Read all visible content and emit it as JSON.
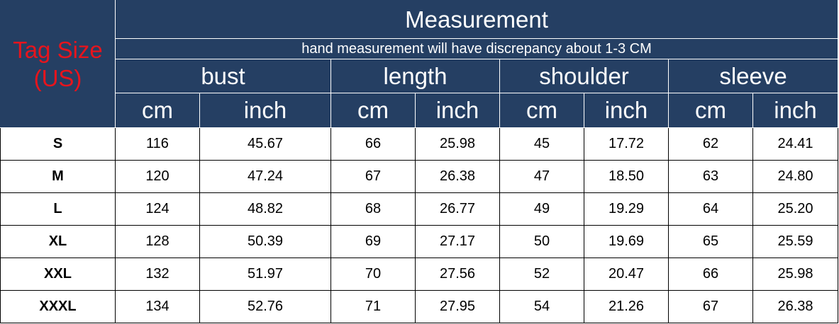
{
  "header": {
    "tag_size": "Tag Size",
    "tag_size_region": "(US)",
    "title": "Measurement",
    "note": "hand measurement will have discrepancy about 1-3 CM",
    "groups": [
      "bust",
      "length",
      "shoulder",
      "sleeve"
    ],
    "units": [
      "cm",
      "inch",
      "cm",
      "inch",
      "cm",
      "inch",
      "cm",
      "inch"
    ]
  },
  "colors": {
    "header_bg": "#253f63",
    "tag_text": "#e8141c"
  },
  "rows": [
    {
      "size": "S",
      "values": [
        "116",
        "45.67",
        "66",
        "25.98",
        "45",
        "17.72",
        "62",
        "24.41"
      ]
    },
    {
      "size": "M",
      "values": [
        "120",
        "47.24",
        "67",
        "26.38",
        "47",
        "18.50",
        "63",
        "24.80"
      ]
    },
    {
      "size": "L",
      "values": [
        "124",
        "48.82",
        "68",
        "26.77",
        "49",
        "19.29",
        "64",
        "25.20"
      ]
    },
    {
      "size": "XL",
      "values": [
        "128",
        "50.39",
        "69",
        "27.17",
        "50",
        "19.69",
        "65",
        "25.59"
      ]
    },
    {
      "size": "XXL",
      "values": [
        "132",
        "51.97",
        "70",
        "27.56",
        "52",
        "20.47",
        "66",
        "25.98"
      ]
    },
    {
      "size": "XXXL",
      "values": [
        "134",
        "52.76",
        "71",
        "27.95",
        "54",
        "21.26",
        "67",
        "26.38"
      ]
    }
  ]
}
